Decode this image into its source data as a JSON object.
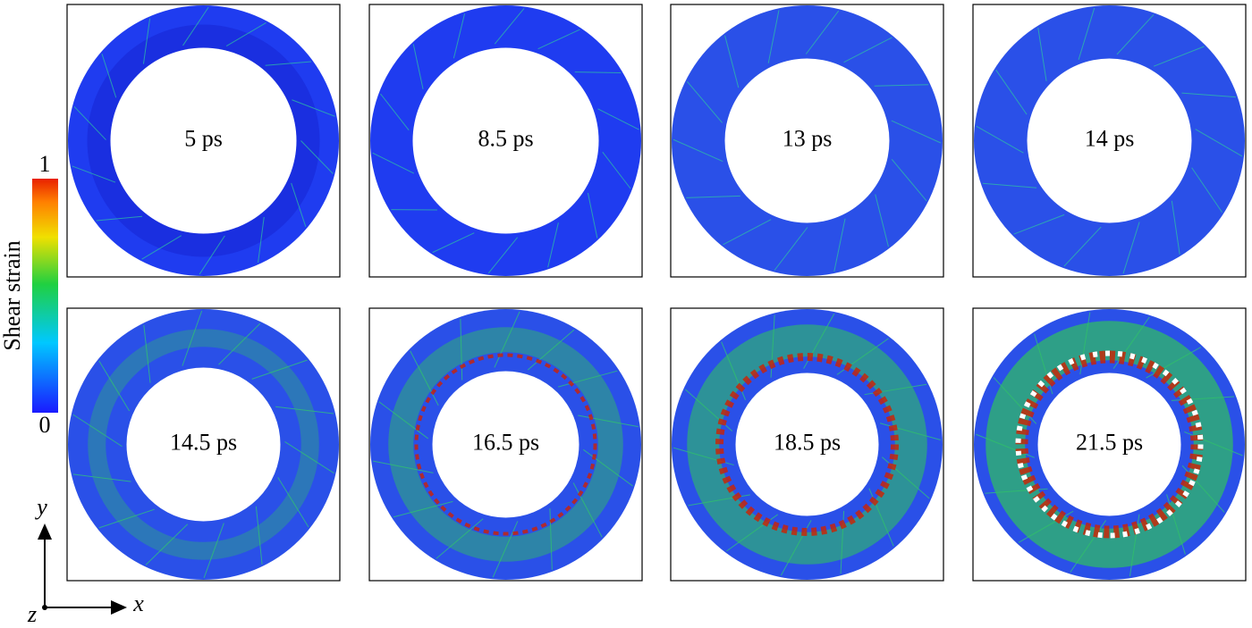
{
  "colorbar": {
    "max_label": "1",
    "min_label": "0",
    "title": "Shear strain"
  },
  "axes": {
    "y": "y",
    "x": "x",
    "z": "z"
  },
  "panels": [
    {
      "label": "5 ps"
    },
    {
      "label": "8.5 ps"
    },
    {
      "label": "13 ps"
    },
    {
      "label": "14 ps"
    },
    {
      "label": "14.5 ps"
    },
    {
      "label": "16.5 ps"
    },
    {
      "label": "18.5 ps"
    },
    {
      "label": "21.5 ps"
    }
  ]
}
